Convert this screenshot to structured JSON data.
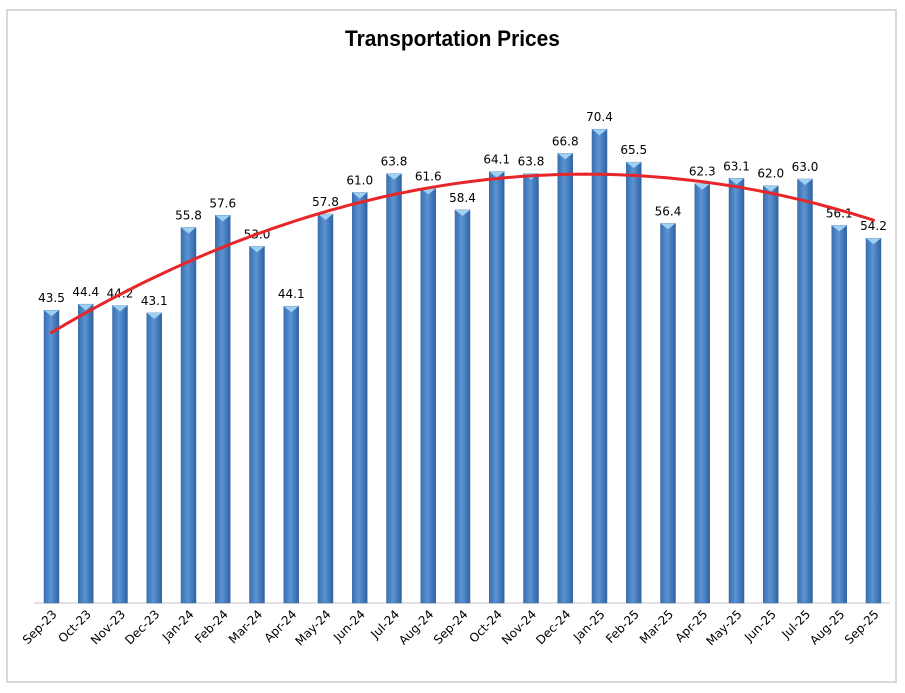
{
  "chart_data": {
    "type": "bar",
    "title": "Transportation Prices",
    "xlabel": "",
    "ylabel": "",
    "ylim": [
      0,
      70.4
    ],
    "grid": false,
    "legend": "none",
    "categories": [
      "Sep-23",
      "Oct-23",
      "Nov-23",
      "Dec-23",
      "Jan-24",
      "Feb-24",
      "Mar-24",
      "Apr-24",
      "May-24",
      "Jun-24",
      "Jul-24",
      "Aug-24",
      "Sep-24",
      "Oct-24",
      "Nov-24",
      "Dec-24",
      "Jan-25",
      "Feb-25",
      "Mar-25",
      "Apr-25",
      "May-25",
      "Jun-25",
      "Jul-25",
      "Aug-25",
      "Sep-25"
    ],
    "values": [
      43.5,
      44.4,
      44.2,
      43.1,
      55.8,
      57.6,
      53.0,
      44.1,
      57.8,
      61.0,
      63.8,
      61.6,
      58.4,
      64.1,
      63.8,
      66.8,
      70.4,
      65.5,
      56.4,
      62.3,
      63.1,
      62.0,
      63.0,
      56.1,
      54.2
    ],
    "data_labels": [
      "43.5",
      "44.4",
      "44.2",
      "43.1",
      "55.8",
      "57.6",
      "53.0",
      "44.1",
      "57.8",
      "61.0",
      "63.8",
      "61.6",
      "58.4",
      "64.1",
      "63.8",
      "66.8",
      "70.4",
      "65.5",
      "56.4",
      "62.3",
      "63.1",
      "62.0",
      "63.0",
      "56.1",
      "54.2"
    ],
    "trendline": {
      "type": "polynomial",
      "order": 2,
      "color": "#e8262a"
    },
    "bar_color": "#4f86c6"
  }
}
